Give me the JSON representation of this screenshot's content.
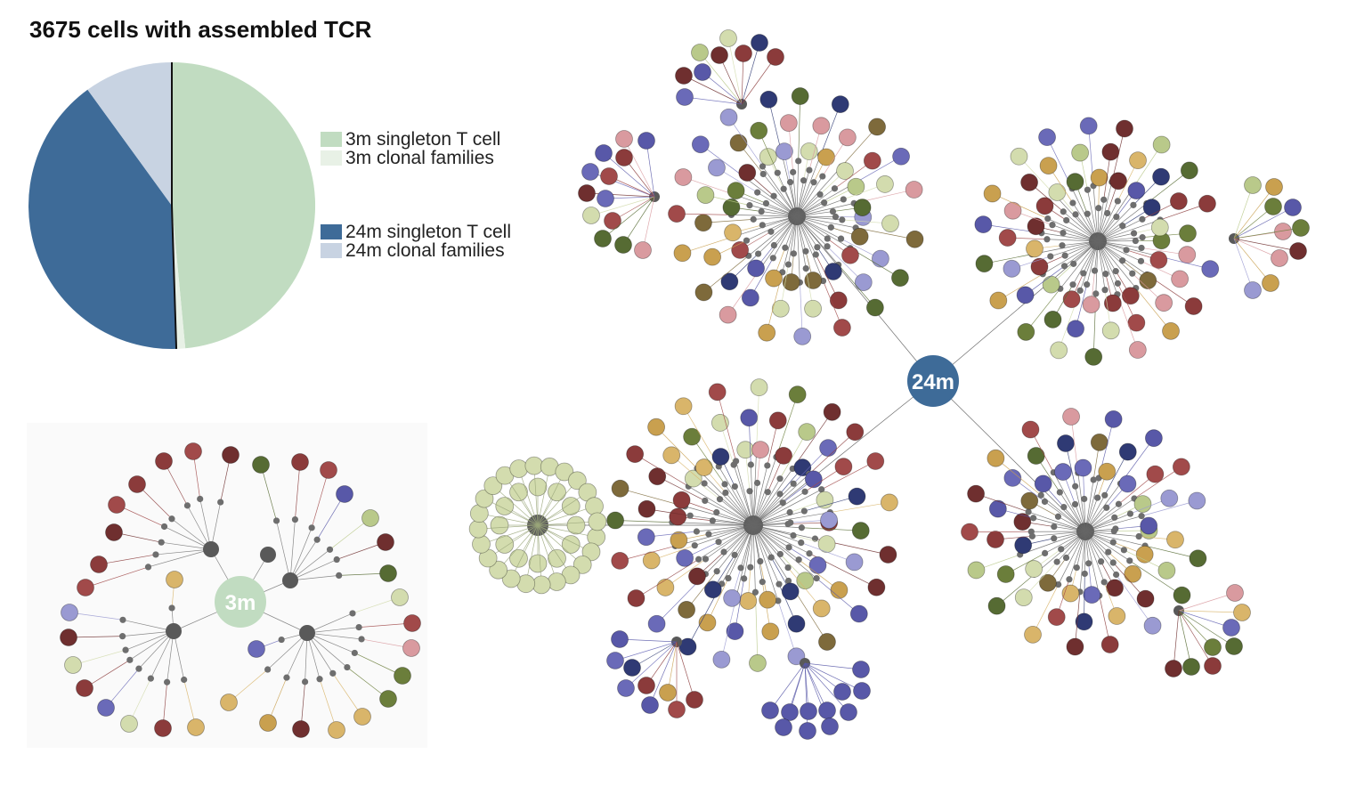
{
  "title": "3675 cells with assembled TCR",
  "colors": {
    "sg3": "#c1dcc1",
    "cl3": "#e8f1e6",
    "sg24": "#3e6b98",
    "cl24": "#c8d3e2",
    "hub": "#595959",
    "small": "#6e6e6e",
    "node_palette": [
      "#8b3b3b",
      "#a14a4a",
      "#5858a8",
      "#6a6ab8",
      "#9a9ad2",
      "#2f3a74",
      "#d9b56a",
      "#c9a04f",
      "#566b33",
      "#6b7e3b",
      "#b9c98a",
      "#d3dcae",
      "#7e6a3b",
      "#d99a9f",
      "#6f2f2f"
    ]
  },
  "pie": {
    "slices": [
      {
        "key": "sg3",
        "label": "3m singleton T cell",
        "fraction": 0.485
      },
      {
        "key": "cl3",
        "label": "3m clonal families",
        "fraction": 0.01
      },
      {
        "key": "sg24",
        "label": "24m singleton T cell",
        "fraction": 0.405
      },
      {
        "key": "cl24",
        "label": "24m clonal families",
        "fraction": 0.1
      }
    ]
  },
  "legend": {
    "group1": [
      {
        "key": "sg3",
        "label": "3m singleton T cell"
      },
      {
        "key": "cl3",
        "label": "3m clonal families"
      }
    ],
    "group2": [
      {
        "key": "sg24",
        "label": "24m singleton T cell"
      },
      {
        "key": "cl24",
        "label": "24m clonal families"
      }
    ]
  },
  "networks": {
    "label_3m": "3m",
    "label_24m": "24m"
  }
}
